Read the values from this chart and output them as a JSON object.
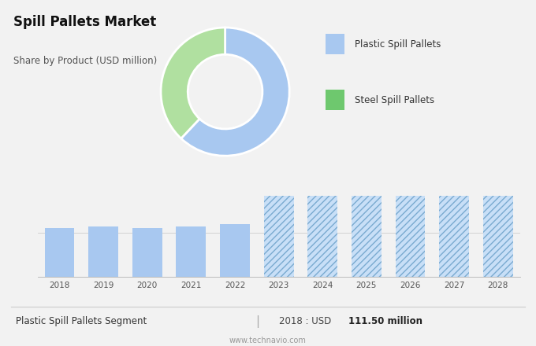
{
  "title": "Spill Pallets Market",
  "subtitle": "Share by Product (USD million)",
  "pie_values": [
    62,
    38
  ],
  "pie_colors": [
    "#a8c8f0",
    "#b0e0a0"
  ],
  "pie_labels": [
    "Plastic Spill Pallets",
    "Steel Spill Pallets"
  ],
  "legend_colors": [
    "#a8c8f0",
    "#6ec86e"
  ],
  "bar_years_solid": [
    2018,
    2019,
    2020,
    2021,
    2022
  ],
  "bar_values_solid": [
    111.5,
    115.0,
    112.0,
    114.5,
    120.0
  ],
  "bar_years_hatched": [
    2023,
    2024,
    2025,
    2026,
    2027,
    2028
  ],
  "bar_values_hatched": [
    200.0,
    200.0,
    200.0,
    200.0,
    200.0,
    200.0
  ],
  "bar_color_solid": "#a8c8f0",
  "bar_color_hatched": "#c8dff7",
  "hatch_pattern": "////",
  "hatch_color": "#7aaad0",
  "top_bg_color": "#d9d9d9",
  "bottom_bg_color": "#f2f2f2",
  "footer_text": "Plastic Spill Pallets Segment",
  "footer_value_label": "2018 : USD",
  "footer_value": "111.50 million",
  "watermark": "www.technavio.com",
  "ylim": [
    0,
    200
  ],
  "bar_ylim_display": 130
}
